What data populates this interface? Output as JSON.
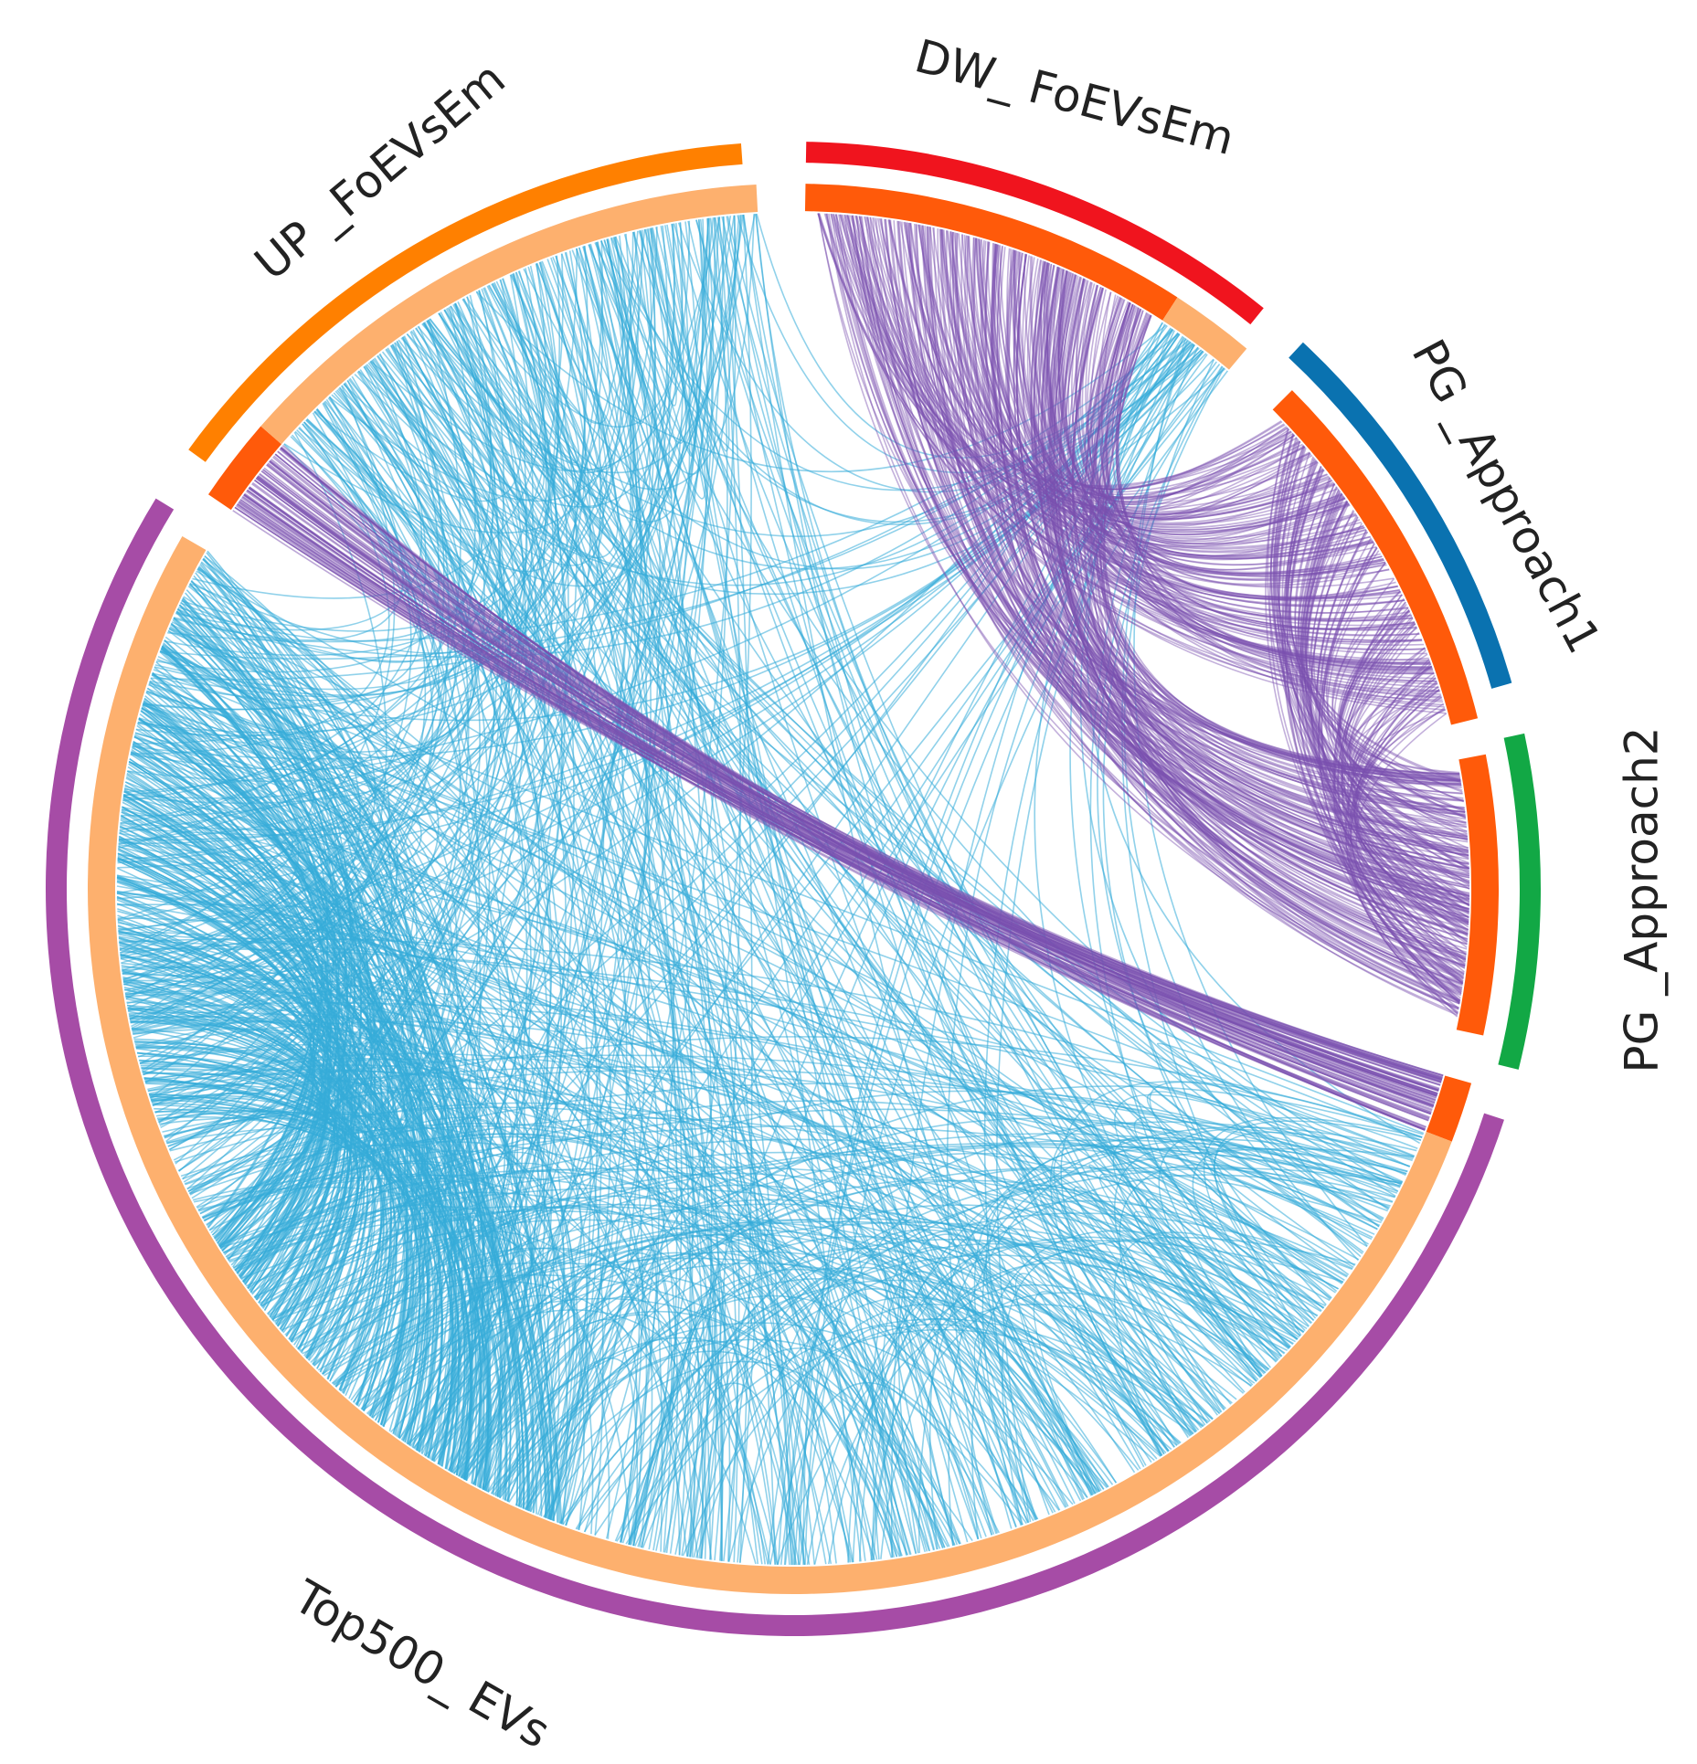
{
  "nodes": [
    {
      "label": "UP _FoEVsEm"
    },
    {
      "label": "DW_ FoEVsEm"
    },
    {
      "label": "PG _Approach1"
    },
    {
      "label": "PG _Approach2"
    },
    {
      "label": "Top500_ EVs"
    }
  ]
}
